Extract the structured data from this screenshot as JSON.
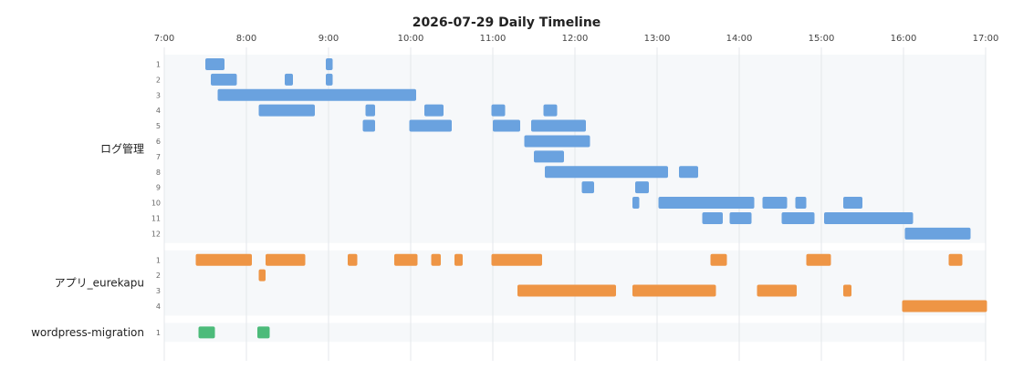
{
  "chart_data": {
    "type": "timeline",
    "title": "2026-07-29 Daily Timeline",
    "x_ticks": [
      "7:00",
      "8:00",
      "9:00",
      "10:00",
      "11:00",
      "12:00",
      "13:00",
      "14:00",
      "15:00",
      "16:00",
      "17:00"
    ],
    "xlim": [
      "7:00",
      "17:00"
    ],
    "grid": true,
    "groups": [
      {
        "name": "ログ管理",
        "color": "#6aa2df",
        "rows": [
          {
            "label": "1",
            "bars": [
              [
                "7:30",
                "7:44"
              ],
              [
                "8:58",
                "9:03"
              ]
            ]
          },
          {
            "label": "2",
            "bars": [
              [
                "7:34",
                "7:53"
              ],
              [
                "8:28",
                "8:34"
              ],
              [
                "8:58",
                "9:03"
              ]
            ]
          },
          {
            "label": "3",
            "bars": [
              [
                "7:39",
                "10:04"
              ]
            ]
          },
          {
            "label": "4",
            "bars": [
              [
                "8:09",
                "8:50"
              ],
              [
                "9:27",
                "9:34"
              ],
              [
                "10:10",
                "10:24"
              ],
              [
                "10:59",
                "11:09"
              ],
              [
                "11:37",
                "11:47"
              ]
            ]
          },
          {
            "label": "5",
            "bars": [
              [
                "9:25",
                "9:34"
              ],
              [
                "9:59",
                "10:30"
              ],
              [
                "11:00",
                "11:20"
              ],
              [
                "11:28",
                "12:08"
              ]
            ]
          },
          {
            "label": "6",
            "bars": [
              [
                "11:23",
                "12:11"
              ]
            ]
          },
          {
            "label": "7",
            "bars": [
              [
                "11:30",
                "11:52"
              ]
            ]
          },
          {
            "label": "8",
            "bars": [
              [
                "11:38",
                "13:08"
              ],
              [
                "13:16",
                "13:30"
              ]
            ]
          },
          {
            "label": "9",
            "bars": [
              [
                "12:05",
                "12:14"
              ],
              [
                "12:44",
                "12:54"
              ]
            ]
          },
          {
            "label": "10",
            "bars": [
              [
                "12:42",
                "12:47"
              ],
              [
                "13:01",
                "14:11"
              ],
              [
                "14:17",
                "14:35"
              ],
              [
                "14:41",
                "14:49"
              ],
              [
                "15:16",
                "15:30"
              ]
            ]
          },
          {
            "label": "11",
            "bars": [
              [
                "13:33",
                "13:48"
              ],
              [
                "13:53",
                "14:09"
              ],
              [
                "14:31",
                "14:55"
              ],
              [
                "15:02",
                "16:07"
              ]
            ]
          },
          {
            "label": "12",
            "bars": [
              [
                "16:01",
                "16:49"
              ]
            ]
          }
        ]
      },
      {
        "name": "アプリ_eurekapu",
        "color": "#ee9545",
        "rows": [
          {
            "label": "1",
            "bars": [
              [
                "7:23",
                "8:04"
              ],
              [
                "8:14",
                "8:43"
              ],
              [
                "9:14",
                "9:21"
              ],
              [
                "9:48",
                "10:05"
              ],
              [
                "10:15",
                "10:22"
              ],
              [
                "10:32",
                "10:38"
              ],
              [
                "10:59",
                "11:36"
              ],
              [
                "13:39",
                "13:51"
              ],
              [
                "14:49",
                "15:07"
              ],
              [
                "16:33",
                "16:43"
              ]
            ]
          },
          {
            "label": "2",
            "bars": [
              [
                "8:09",
                "8:14"
              ]
            ]
          },
          {
            "label": "3",
            "bars": [
              [
                "11:18",
                "12:30"
              ],
              [
                "12:42",
                "13:43"
              ],
              [
                "14:13",
                "14:42"
              ],
              [
                "15:16",
                "15:22"
              ]
            ]
          },
          {
            "label": "4",
            "bars": [
              [
                "15:59",
                "17:01"
              ]
            ]
          }
        ]
      },
      {
        "name": "wordpress-migration",
        "color": "#4cbb7a",
        "rows": [
          {
            "label": "1",
            "bars": [
              [
                "7:25",
                "7:37"
              ],
              [
                "8:08",
                "8:17"
              ]
            ]
          }
        ]
      }
    ]
  }
}
